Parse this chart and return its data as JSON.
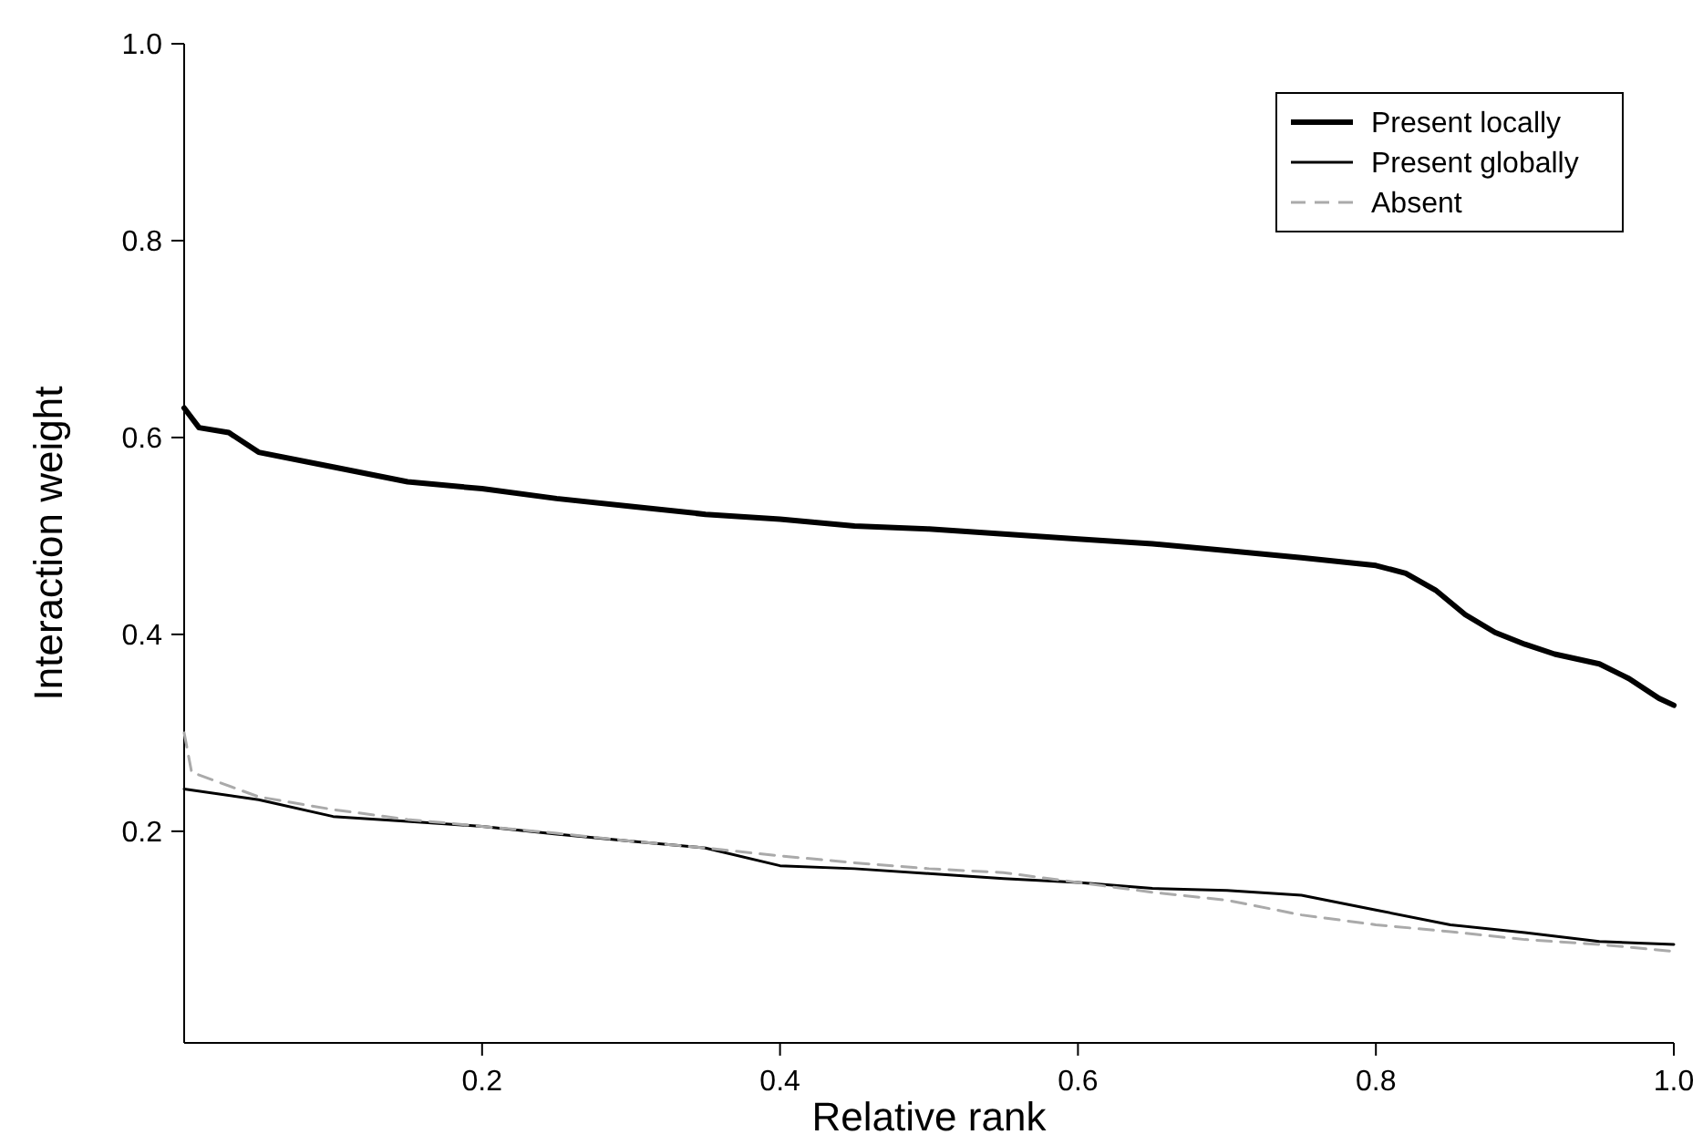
{
  "chart_data": {
    "type": "line",
    "xlabel": "Relative rank",
    "ylabel": "Interaction weight",
    "xlim": [
      0,
      1
    ],
    "ylim": [
      -0.015,
      1.0
    ],
    "xticks": [
      0.2,
      0.4,
      0.6,
      0.8,
      {
        "value": 1,
        "label": "1.0"
      }
    ],
    "yticks": [
      0.2,
      0.4,
      0.6,
      0.8,
      {
        "value": 1,
        "label": "1.0"
      }
    ],
    "grid": false,
    "legend": "top right",
    "series": [
      {
        "name": "Present locally",
        "color": "#000000",
        "line_style": "solid",
        "x": [
          0,
          0.01,
          0.03,
          0.05,
          0.1,
          0.15,
          0.2,
          0.25,
          0.3,
          0.35,
          0.4,
          0.45,
          0.5,
          0.55,
          0.6,
          0.65,
          0.7,
          0.75,
          0.8,
          0.82,
          0.84,
          0.86,
          0.88,
          0.9,
          0.92,
          0.95,
          0.97,
          0.99,
          1.0
        ],
        "values": [
          0.63,
          0.61,
          0.605,
          0.585,
          0.57,
          0.555,
          0.548,
          0.538,
          0.53,
          0.522,
          0.517,
          0.51,
          0.507,
          0.502,
          0.497,
          0.492,
          0.485,
          0.478,
          0.47,
          0.462,
          0.445,
          0.42,
          0.402,
          0.39,
          0.38,
          0.37,
          0.355,
          0.335,
          0.328
        ]
      },
      {
        "name": "Present globally",
        "color": "#000000",
        "line_style": "solid",
        "x": [
          0,
          0.05,
          0.1,
          0.15,
          0.2,
          0.25,
          0.3,
          0.35,
          0.4,
          0.45,
          0.5,
          0.55,
          0.6,
          0.65,
          0.7,
          0.75,
          0.8,
          0.85,
          0.9,
          0.95,
          1.0
        ],
        "values": [
          0.243,
          0.232,
          0.215,
          0.21,
          0.205,
          0.197,
          0.19,
          0.183,
          0.165,
          0.162,
          0.157,
          0.152,
          0.148,
          0.142,
          0.14,
          0.135,
          0.12,
          0.105,
          0.097,
          0.088,
          0.085
        ]
      },
      {
        "name": "Absent",
        "color": "#aaaaaa",
        "line_style": "dashed",
        "x": [
          0,
          0.005,
          0.05,
          0.1,
          0.15,
          0.2,
          0.25,
          0.3,
          0.35,
          0.4,
          0.45,
          0.5,
          0.55,
          0.6,
          0.65,
          0.7,
          0.75,
          0.8,
          0.85,
          0.9,
          0.95,
          1.0
        ],
        "values": [
          0.3,
          0.26,
          0.235,
          0.222,
          0.212,
          0.205,
          0.198,
          0.19,
          0.183,
          0.175,
          0.168,
          0.162,
          0.158,
          0.148,
          0.138,
          0.13,
          0.115,
          0.105,
          0.098,
          0.09,
          0.085,
          0.078
        ]
      }
    ]
  }
}
